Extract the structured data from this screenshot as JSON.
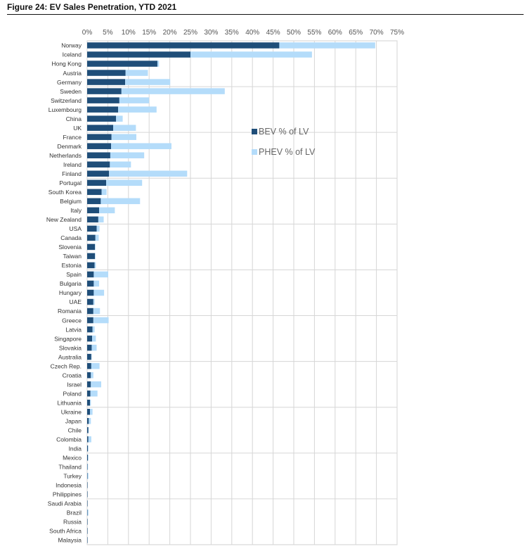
{
  "figure_title": "Figure 24: EV Sales Penetration, YTD 2021",
  "chart_data": {
    "type": "bar",
    "orientation": "horizontal",
    "stacked": true,
    "title": "Figure 24: EV Sales Penetration, YTD 2021",
    "xlabel": "",
    "ylabel": "",
    "xlim": [
      0,
      75
    ],
    "xticks": [
      0,
      5,
      10,
      15,
      20,
      25,
      30,
      35,
      40,
      45,
      50,
      55,
      60,
      65,
      70,
      75
    ],
    "tick_suffix": "%",
    "grid": true,
    "legend_position": "right-middle",
    "categories": [
      "Norway",
      "Iceland",
      "Hong Kong",
      "Austria",
      "Germany",
      "Sweden",
      "Switzerland",
      "Luxembourg",
      "China",
      "UK",
      "France",
      "Denmark",
      "Netherlands",
      "Ireland",
      "Finland",
      "Portugal",
      "South Korea",
      "Belgium",
      "Italy",
      "New Zealand",
      "USA",
      "Canada",
      "Slovenia",
      "Taiwan",
      "Estonia",
      "Spain",
      "Bulgaria",
      "Hungary",
      "UAE",
      "Romania",
      "Greece",
      "Latvia",
      "Singapore",
      "Slovakia",
      "Australia",
      "Czech Rep.",
      "Croatia",
      "Israel",
      "Poland",
      "Lithuania",
      "Ukraine",
      "Japan",
      "Chile",
      "Colombia",
      "India",
      "Mexico",
      "Thailand",
      "Turkey",
      "Indonesia",
      "Philippines",
      "Saudi Arabia",
      "Brazil",
      "Russia",
      "South Africa",
      "Malaysia"
    ],
    "series": [
      {
        "name": "BEV % of LV",
        "color": "#1f4e79",
        "values": [
          46.5,
          25.0,
          17.0,
          9.3,
          9.2,
          8.3,
          7.8,
          7.5,
          7.0,
          6.3,
          5.9,
          5.8,
          5.6,
          5.5,
          5.3,
          4.6,
          3.5,
          3.3,
          2.9,
          2.7,
          2.3,
          2.0,
          1.9,
          1.9,
          1.8,
          1.6,
          1.6,
          1.6,
          1.5,
          1.5,
          1.5,
          1.3,
          1.2,
          1.1,
          1.0,
          1.0,
          0.9,
          0.9,
          0.8,
          0.7,
          0.7,
          0.4,
          0.3,
          0.3,
          0.2,
          0.2,
          0.1,
          0.1,
          0.1,
          0.1,
          0.1,
          0.1,
          0.1,
          0.1,
          0.1
        ]
      },
      {
        "name": "PHEV % of LV",
        "color": "#b4dcfa",
        "values": [
          23.2,
          29.4,
          0.4,
          5.4,
          10.9,
          25.0,
          7.2,
          9.3,
          1.6,
          5.5,
          6.0,
          14.6,
          8.2,
          5.1,
          18.9,
          8.7,
          1.2,
          9.5,
          3.8,
          1.3,
          0.7,
          0.8,
          0.1,
          0.1,
          0.3,
          3.5,
          1.3,
          2.5,
          0.3,
          1.6,
          3.7,
          0.5,
          0.9,
          1.2,
          0.1,
          2.0,
          0.6,
          2.5,
          1.7,
          0.2,
          0.6,
          0.5,
          0.1,
          0.7,
          0.1,
          0.1,
          0.1,
          0.2,
          0.0,
          0.0,
          0.0,
          0.2,
          0.0,
          0.0,
          0.0
        ]
      }
    ]
  }
}
